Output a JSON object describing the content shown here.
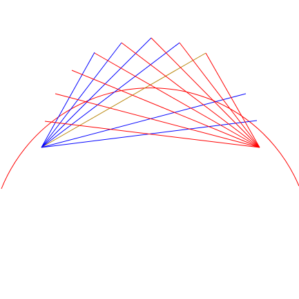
{
  "colors": {
    "background": "#ffffff",
    "arc": "#ff0000",
    "left_fan": "#0000ff",
    "right_fan": "#ff0000",
    "overlap": "#b8860b"
  },
  "figure": {
    "arc": {
      "description_none": ""
    },
    "left_fan": {
      "ray_count": 7
    },
    "right_fan": {
      "ray_count": 8
    }
  }
}
